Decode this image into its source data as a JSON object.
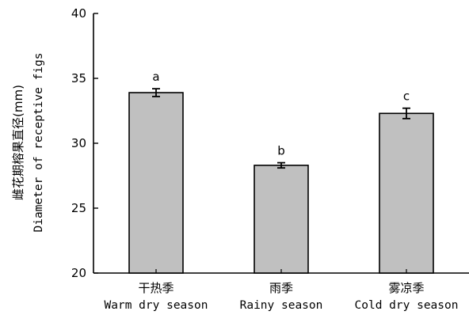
{
  "chart_data": {
    "type": "bar",
    "categories": [
      {
        "zh": "干热季",
        "en": "Warm dry season"
      },
      {
        "zh": "雨季",
        "en": "Rainy season"
      },
      {
        "zh": "雾凉季",
        "en": "Cold dry season"
      }
    ],
    "values": [
      33.9,
      28.3,
      32.3
    ],
    "errors": [
      0.3,
      0.2,
      0.4
    ],
    "significance_letters": [
      "a",
      "b",
      "c"
    ],
    "ylabel_zh": "雌花期榕果直径(mm)",
    "ylabel_en": "Diameter of receptive figs",
    "ylim": [
      20,
      40
    ],
    "yticks": [
      "20",
      "25",
      "30",
      "35",
      "40"
    ],
    "grid": false,
    "legend": "none",
    "colors": {
      "bar_fill": "#c0c0c0",
      "bar_stroke": "#000000",
      "axis": "#000000"
    }
  }
}
